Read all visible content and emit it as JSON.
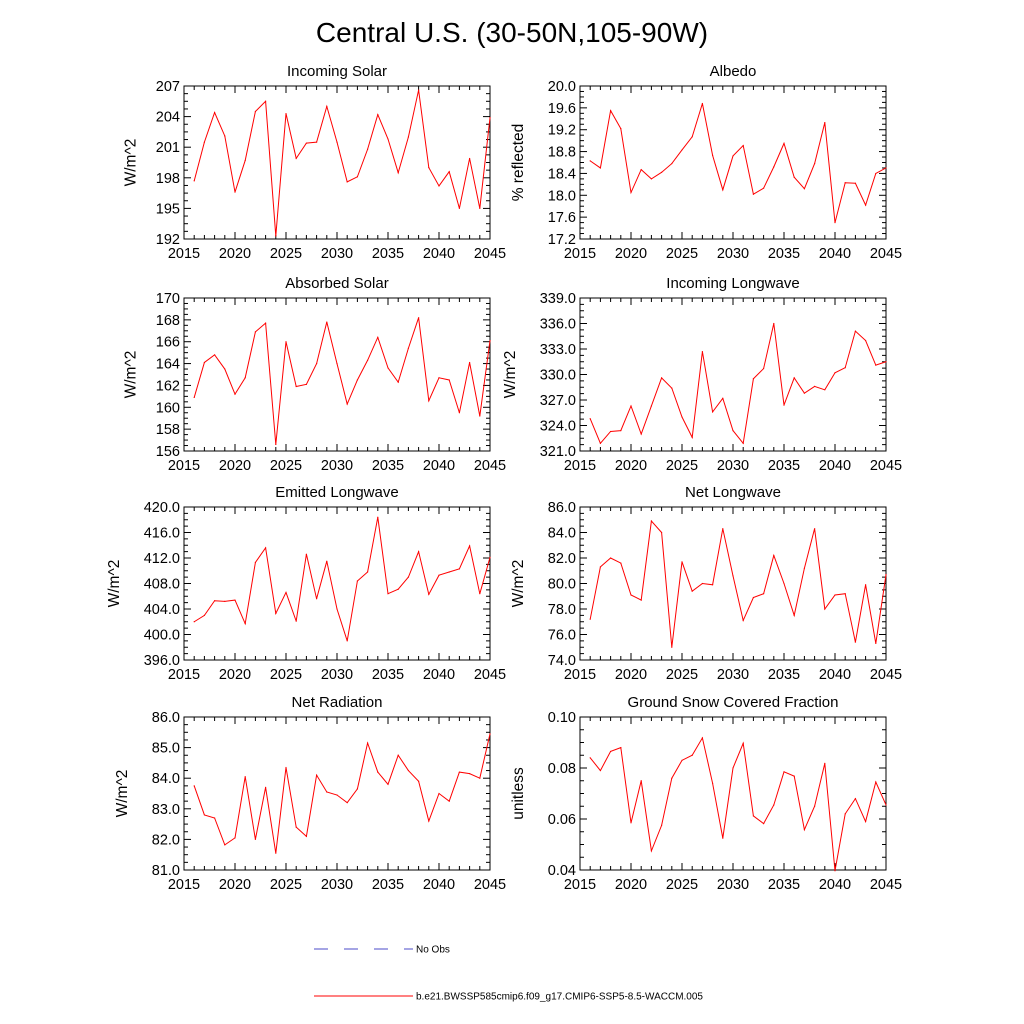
{
  "figure_title": "Central U.S. (30-50N,105-90W)",
  "legend": {
    "items": [
      {
        "label": "No Obs",
        "color": "#4b4bc8",
        "style": "dashed"
      },
      {
        "label": "b.e21.BWSSP585cmip6.f09_g17.CMIP6-SSP5-8.5-WACCM.005",
        "color": "#ff0000",
        "style": "solid"
      }
    ]
  },
  "chart_data": [
    {
      "type": "line",
      "title": "Incoming Solar",
      "xlabel": "",
      "ylabel": "W/m^2",
      "xlim": [
        2015,
        2045
      ],
      "ylim": [
        192,
        207
      ],
      "x_ticks": [
        2015,
        2020,
        2025,
        2030,
        2035,
        2040,
        2045
      ],
      "x_tick_labels": [
        "2015",
        "2020",
        "2025",
        "2030",
        "2035",
        "2040",
        "2045"
      ],
      "y_ticks": [
        192,
        195,
        198,
        201,
        204,
        207
      ],
      "y_tick_labels": [
        "192",
        "195",
        "198",
        "201",
        "204",
        "207"
      ],
      "color": "#ff0000",
      "series": [
        {
          "name": "b.e21.BWSSP585cmip6.f09_g17.CMIP6-SSP5-8.5-WACCM.005",
          "x": [
            2016,
            2017,
            2018,
            2019,
            2020,
            2021,
            2022,
            2023,
            2024,
            2025,
            2026,
            2027,
            2028,
            2029,
            2030,
            2031,
            2032,
            2033,
            2034,
            2035,
            2036,
            2037,
            2038,
            2039,
            2040,
            2041,
            2042,
            2043,
            2044,
            2045
          ],
          "values": [
            197.7,
            201.5,
            204.4,
            202.1,
            196.6,
            199.7,
            204.5,
            205.5,
            192.3,
            204.3,
            199.9,
            201.4,
            201.5,
            205.0,
            201.5,
            197.6,
            198.1,
            200.8,
            204.2,
            201.8,
            198.5,
            202.0,
            206.6,
            199.0,
            197.2,
            198.6,
            195.0,
            199.9,
            195.0,
            203.9
          ]
        }
      ]
    },
    {
      "type": "line",
      "title": "Albedo",
      "xlabel": "",
      "ylabel": "% reflected",
      "xlim": [
        2015,
        2045
      ],
      "ylim": [
        17.2,
        20.0
      ],
      "x_ticks": [
        2015,
        2020,
        2025,
        2030,
        2035,
        2040,
        2045
      ],
      "x_tick_labels": [
        "2015",
        "2020",
        "2025",
        "2030",
        "2035",
        "2040",
        "2045"
      ],
      "y_ticks": [
        17.2,
        17.6,
        18.0,
        18.4,
        18.8,
        19.2,
        19.6,
        20.0
      ],
      "y_tick_labels": [
        "17.2",
        "17.6",
        "18.0",
        "18.4",
        "18.8",
        "19.2",
        "19.6",
        "20.0"
      ],
      "color": "#ff0000",
      "series": [
        {
          "name": "b.e21.BWSSP585cmip6.f09_g17.CMIP6-SSP5-8.5-WACCM.005",
          "x": [
            2016,
            2017,
            2018,
            2019,
            2020,
            2021,
            2022,
            2023,
            2024,
            2025,
            2026,
            2027,
            2028,
            2029,
            2030,
            2031,
            2032,
            2033,
            2034,
            2035,
            2036,
            2037,
            2038,
            2039,
            2040,
            2041,
            2042,
            2043,
            2044,
            2045
          ],
          "values": [
            18.63,
            18.5,
            19.55,
            19.22,
            18.05,
            18.47,
            18.3,
            18.42,
            18.58,
            18.83,
            19.07,
            19.68,
            18.73,
            18.1,
            18.72,
            18.91,
            18.02,
            18.13,
            18.52,
            18.95,
            18.33,
            18.12,
            18.58,
            19.33,
            17.5,
            18.23,
            18.22,
            17.82,
            18.4,
            18.5
          ]
        }
      ]
    },
    {
      "type": "line",
      "title": "Absorbed Solar",
      "xlabel": "",
      "ylabel": "W/m^2",
      "xlim": [
        2015,
        2045
      ],
      "ylim": [
        156,
        170
      ],
      "x_ticks": [
        2015,
        2020,
        2025,
        2030,
        2035,
        2040,
        2045
      ],
      "x_tick_labels": [
        "2015",
        "2020",
        "2025",
        "2030",
        "2035",
        "2040",
        "2045"
      ],
      "y_ticks": [
        156,
        158,
        160,
        162,
        164,
        166,
        168,
        170
      ],
      "y_tick_labels": [
        "156",
        "158",
        "160",
        "162",
        "164",
        "166",
        "168",
        "170"
      ],
      "color": "#ff0000",
      "series": [
        {
          "name": "b.e21.BWSSP585cmip6.f09_g17.CMIP6-SSP5-8.5-WACCM.005",
          "x": [
            2016,
            2017,
            2018,
            2019,
            2020,
            2021,
            2022,
            2023,
            2024,
            2025,
            2026,
            2027,
            2028,
            2029,
            2030,
            2031,
            2032,
            2033,
            2034,
            2035,
            2036,
            2037,
            2038,
            2039,
            2040,
            2041,
            2042,
            2043,
            2044,
            2045
          ],
          "values": [
            160.9,
            164.1,
            164.8,
            163.5,
            161.2,
            162.7,
            166.9,
            167.7,
            156.6,
            166.0,
            161.9,
            162.1,
            164.0,
            167.8,
            164.0,
            160.3,
            162.5,
            164.3,
            166.4,
            163.6,
            162.3,
            165.4,
            168.2,
            160.6,
            162.7,
            162.5,
            159.5,
            164.1,
            159.2,
            166.1
          ]
        }
      ]
    },
    {
      "type": "line",
      "title": "Incoming Longwave",
      "xlabel": "",
      "ylabel": "W/m^2",
      "xlim": [
        2015,
        2045
      ],
      "ylim": [
        321.0,
        339.0
      ],
      "x_ticks": [
        2015,
        2020,
        2025,
        2030,
        2035,
        2040,
        2045
      ],
      "x_tick_labels": [
        "2015",
        "2020",
        "2025",
        "2030",
        "2035",
        "2040",
        "2045"
      ],
      "y_ticks": [
        321.0,
        324.0,
        327.0,
        330.0,
        333.0,
        336.0,
        339.0
      ],
      "y_tick_labels": [
        "321.0",
        "324.0",
        "327.0",
        "330.0",
        "333.0",
        "336.0",
        "339.0"
      ],
      "color": "#ff0000",
      "series": [
        {
          "name": "b.e21.BWSSP585cmip6.f09_g17.CMIP6-SSP5-8.5-WACCM.005",
          "x": [
            2016,
            2017,
            2018,
            2019,
            2020,
            2021,
            2022,
            2023,
            2024,
            2025,
            2026,
            2027,
            2028,
            2029,
            2030,
            2031,
            2032,
            2033,
            2034,
            2035,
            2036,
            2037,
            2038,
            2039,
            2040,
            2041,
            2042,
            2043,
            2044,
            2045
          ],
          "values": [
            324.8,
            321.9,
            323.3,
            323.4,
            326.3,
            323.0,
            326.3,
            329.6,
            328.4,
            325.0,
            322.6,
            332.7,
            325.6,
            327.2,
            323.4,
            321.9,
            329.5,
            330.7,
            336.0,
            326.4,
            329.6,
            327.8,
            328.6,
            328.2,
            330.2,
            330.8,
            335.1,
            334.0,
            331.1,
            331.5
          ]
        }
      ]
    },
    {
      "type": "line",
      "title": "Emitted Longwave",
      "xlabel": "",
      "ylabel": "W/m^2",
      "xlim": [
        2015,
        2045
      ],
      "ylim": [
        396.0,
        420.0
      ],
      "x_ticks": [
        2015,
        2020,
        2025,
        2030,
        2035,
        2040,
        2045
      ],
      "x_tick_labels": [
        "2015",
        "2020",
        "2025",
        "2030",
        "2035",
        "2040",
        "2045"
      ],
      "y_ticks": [
        396.0,
        400.0,
        404.0,
        408.0,
        412.0,
        416.0,
        420.0
      ],
      "y_tick_labels": [
        "396.0",
        "400.0",
        "404.0",
        "408.0",
        "412.0",
        "416.0",
        "420.0"
      ],
      "color": "#ff0000",
      "series": [
        {
          "name": "b.e21.BWSSP585cmip6.f09_g17.CMIP6-SSP5-8.5-WACCM.005",
          "x": [
            2016,
            2017,
            2018,
            2019,
            2020,
            2021,
            2022,
            2023,
            2024,
            2025,
            2026,
            2027,
            2028,
            2029,
            2030,
            2031,
            2032,
            2033,
            2034,
            2035,
            2036,
            2037,
            2038,
            2039,
            2040,
            2041,
            2042,
            2043,
            2044,
            2045
          ],
          "values": [
            402.0,
            403.0,
            405.3,
            405.2,
            405.4,
            401.7,
            411.3,
            413.6,
            403.3,
            406.6,
            402.1,
            412.6,
            405.6,
            411.5,
            404.0,
            399.0,
            408.4,
            409.8,
            418.4,
            406.4,
            407.1,
            409.0,
            413.0,
            406.3,
            409.3,
            409.8,
            410.3,
            413.9,
            406.4,
            412.1
          ]
        }
      ]
    },
    {
      "type": "line",
      "title": "Net Longwave",
      "xlabel": "",
      "ylabel": "W/m^2",
      "xlim": [
        2015,
        2045
      ],
      "ylim": [
        74.0,
        86.0
      ],
      "x_ticks": [
        2015,
        2020,
        2025,
        2030,
        2035,
        2040,
        2045
      ],
      "x_tick_labels": [
        "2015",
        "2020",
        "2025",
        "2030",
        "2035",
        "2040",
        "2045"
      ],
      "y_ticks": [
        74.0,
        76.0,
        78.0,
        80.0,
        82.0,
        84.0,
        86.0
      ],
      "y_tick_labels": [
        "74.0",
        "76.0",
        "78.0",
        "80.0",
        "82.0",
        "84.0",
        "86.0"
      ],
      "color": "#ff0000",
      "series": [
        {
          "name": "b.e21.BWSSP585cmip6.f09_g17.CMIP6-SSP5-8.5-WACCM.005",
          "x": [
            2016,
            2017,
            2018,
            2019,
            2020,
            2021,
            2022,
            2023,
            2024,
            2025,
            2026,
            2027,
            2028,
            2029,
            2030,
            2031,
            2032,
            2033,
            2034,
            2035,
            2036,
            2037,
            2038,
            2039,
            2040,
            2041,
            2042,
            2043,
            2044,
            2045
          ],
          "values": [
            77.2,
            81.3,
            82.0,
            81.6,
            79.1,
            78.7,
            84.9,
            84.0,
            75.0,
            81.7,
            79.4,
            80.0,
            79.9,
            84.3,
            80.6,
            77.1,
            78.9,
            79.2,
            82.2,
            80.0,
            77.5,
            81.2,
            84.3,
            78.0,
            79.1,
            79.2,
            75.4,
            79.9,
            75.3,
            80.7
          ]
        }
      ]
    },
    {
      "type": "line",
      "title": "Net Radiation",
      "xlabel": "",
      "ylabel": "W/m^2",
      "xlim": [
        2015,
        2045
      ],
      "ylim": [
        81.0,
        86.0
      ],
      "x_ticks": [
        2015,
        2020,
        2025,
        2030,
        2035,
        2040,
        2045
      ],
      "x_tick_labels": [
        "2015",
        "2020",
        "2025",
        "2030",
        "2035",
        "2040",
        "2045"
      ],
      "y_ticks": [
        81.0,
        82.0,
        83.0,
        84.0,
        85.0,
        86.0
      ],
      "y_tick_labels": [
        "81.0",
        "82.0",
        "83.0",
        "84.0",
        "85.0",
        "86.0"
      ],
      "color": "#ff0000",
      "series": [
        {
          "name": "b.e21.BWSSP585cmip6.f09_g17.CMIP6-SSP5-8.5-WACCM.005",
          "x": [
            2016,
            2017,
            2018,
            2019,
            2020,
            2021,
            2022,
            2023,
            2024,
            2025,
            2026,
            2027,
            2028,
            2029,
            2030,
            2031,
            2032,
            2033,
            2034,
            2035,
            2036,
            2037,
            2038,
            2039,
            2040,
            2041,
            2042,
            2043,
            2044,
            2045
          ],
          "values": [
            83.75,
            82.8,
            82.7,
            81.82,
            82.05,
            84.05,
            82.0,
            83.7,
            81.55,
            84.35,
            82.4,
            82.1,
            84.1,
            83.55,
            83.45,
            83.2,
            83.65,
            85.15,
            84.2,
            83.8,
            84.75,
            84.25,
            83.9,
            82.6,
            83.5,
            83.25,
            84.2,
            84.15,
            84.0,
            85.45
          ]
        }
      ]
    },
    {
      "type": "line",
      "title": "Ground Snow Covered Fraction",
      "xlabel": "",
      "ylabel": "unitless",
      "xlim": [
        2015,
        2045
      ],
      "ylim": [
        0.04,
        0.1
      ],
      "x_ticks": [
        2015,
        2020,
        2025,
        2030,
        2035,
        2040,
        2045
      ],
      "x_tick_labels": [
        "2015",
        "2020",
        "2025",
        "2030",
        "2035",
        "2040",
        "2045"
      ],
      "y_ticks": [
        0.04,
        0.06,
        0.08,
        0.1
      ],
      "y_tick_labels": [
        "0.04",
        "0.06",
        "0.08",
        "0.10"
      ],
      "color": "#ff0000",
      "series": [
        {
          "name": "b.e21.BWSSP585cmip6.f09_g17.CMIP6-SSP5-8.5-WACCM.005",
          "x": [
            2016,
            2017,
            2018,
            2019,
            2020,
            2021,
            2022,
            2023,
            2024,
            2025,
            2026,
            2027,
            2028,
            2029,
            2030,
            2031,
            2032,
            2033,
            2034,
            2035,
            2036,
            2037,
            2038,
            2039,
            2040,
            2041,
            2042,
            2043,
            2044,
            2045
          ],
          "values": [
            0.084,
            0.079,
            0.0865,
            0.088,
            0.0585,
            0.075,
            0.0475,
            0.0575,
            0.076,
            0.083,
            0.085,
            0.0918,
            0.074,
            0.0525,
            0.08,
            0.0897,
            0.0612,
            0.0582,
            0.0655,
            0.0785,
            0.0768,
            0.0558,
            0.065,
            0.0818,
            0.0397,
            0.062,
            0.068,
            0.059,
            0.0745,
            0.0655
          ]
        }
      ]
    }
  ]
}
